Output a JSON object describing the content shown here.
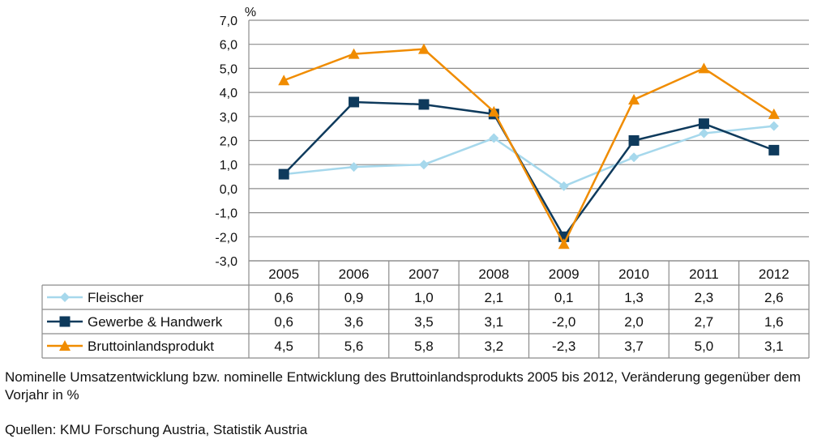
{
  "chart_data": {
    "type": "line",
    "unit_label": "%",
    "categories": [
      "2005",
      "2006",
      "2007",
      "2008",
      "2009",
      "2010",
      "2011",
      "2012"
    ],
    "ylim": [
      -3.0,
      7.0
    ],
    "yticks": [
      "7,0",
      "6,0",
      "5,0",
      "4,0",
      "3,0",
      "2,0",
      "1,0",
      "0,0",
      "-1,0",
      "-2,0",
      "-3,0"
    ],
    "ytick_values": [
      7,
      6,
      5,
      4,
      3,
      2,
      1,
      0,
      -1,
      -2,
      -3
    ],
    "grid": true,
    "legend_placement": "data-table-left",
    "series": [
      {
        "name": "Fleischer",
        "values": [
          0.6,
          0.9,
          1.0,
          2.1,
          0.1,
          1.3,
          2.3,
          2.6
        ],
        "labels": [
          "0,6",
          "0,9",
          "1,0",
          "2,1",
          "0,1",
          "1,3",
          "2,3",
          "2,6"
        ],
        "color": "#a6d8ec",
        "marker": "diamond"
      },
      {
        "name": "Gewerbe & Handwerk",
        "values": [
          0.6,
          3.6,
          3.5,
          3.1,
          -2.0,
          2.0,
          2.7,
          1.6
        ],
        "labels": [
          "0,6",
          "3,6",
          "3,5",
          "3,1",
          "-2,0",
          "2,0",
          "2,7",
          "1,6"
        ],
        "color": "#0e3a5c",
        "marker": "square"
      },
      {
        "name": "Bruttoinlandsprodukt",
        "values": [
          4.5,
          5.6,
          5.8,
          3.2,
          -2.3,
          3.7,
          5.0,
          3.1
        ],
        "labels": [
          "4,5",
          "5,6",
          "5,8",
          "3,2",
          "-2,3",
          "3,7",
          "5,0",
          "3,1"
        ],
        "color": "#f08c00",
        "marker": "triangle"
      }
    ]
  },
  "caption": {
    "description": "Nominelle Umsatzentwicklung bzw. nominelle Entwicklung des Bruttoinlandsprodukts 2005 bis 2012, Veränderung gegenüber dem Vorjahr in %",
    "sources": "Quellen: KMU Forschung Austria, Statistik Austria"
  }
}
